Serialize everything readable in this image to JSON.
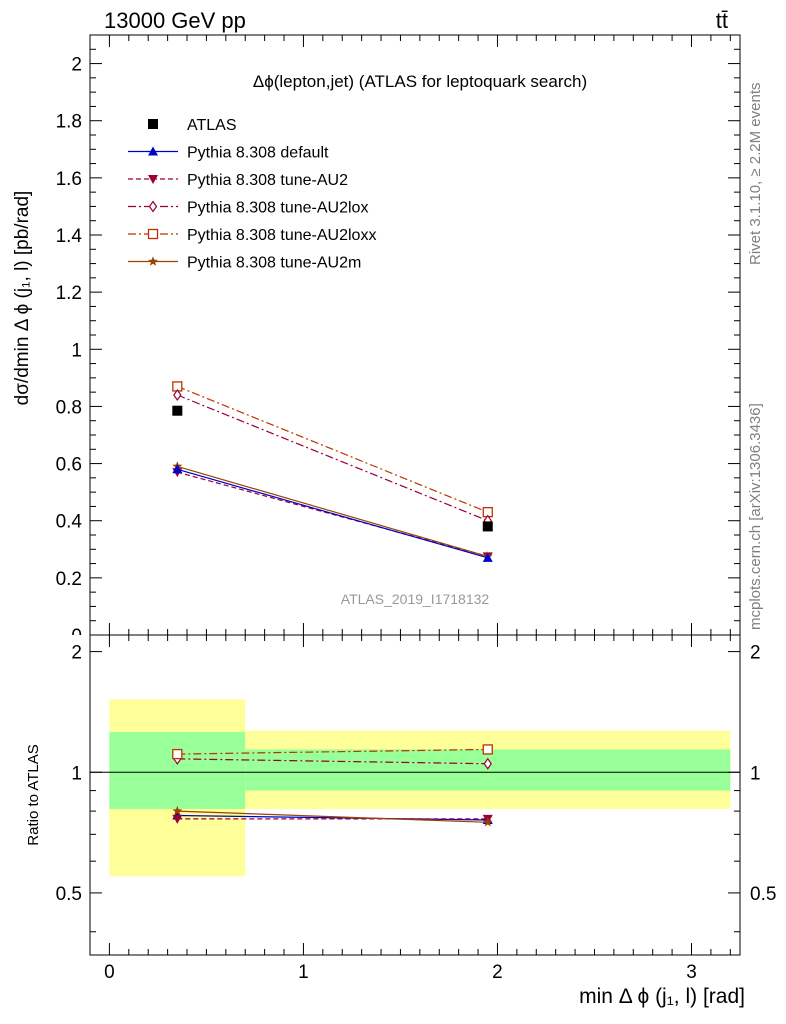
{
  "header": {
    "energy_label": "13000 GeV pp",
    "process_label": "tt̄"
  },
  "side_labels": {
    "rivet": "Rivet 3.1.10, ≥ 2.2M events",
    "mcplots": "mcplots.cern.ch [arXiv:1306.3436]"
  },
  "colors": {
    "data_band_inner": "#99ff99",
    "data_band_outer": "#ffff99"
  },
  "chart_data": [
    {
      "type": "scatter",
      "title": "Δϕ(lepton,jet) (ATLAS for leptoquark search)",
      "watermark": "ATLAS_2019_I1718132",
      "ylabel": "dσ/dmin Δ ϕ (j₁, l) [pb/rad]",
      "xlim": [
        -0.1,
        3.25
      ],
      "ylim": [
        0,
        2.1
      ],
      "yticks": [
        "0",
        "0.2",
        "0.4",
        "0.6",
        "0.8",
        "1",
        "1.2",
        "1.4",
        "1.6",
        "1.8",
        "2"
      ],
      "x": [
        0.35,
        1.95
      ],
      "series": [
        {
          "name": "ATLAS",
          "values": [
            0.785,
            0.38
          ],
          "color": "#000000",
          "marker": "square",
          "line": "none"
        },
        {
          "name": "Pythia 8.308 default",
          "values": [
            0.58,
            0.27
          ],
          "color": "#0000cc",
          "marker": "triangle-up",
          "line": "solid"
        },
        {
          "name": "Pythia 8.308 tune-AU2",
          "values": [
            0.57,
            0.275
          ],
          "color": "#990033",
          "marker": "triangle-down",
          "line": "dashed"
        },
        {
          "name": "Pythia 8.308 tune-AU2lox",
          "values": [
            0.84,
            0.4
          ],
          "color": "#990033",
          "marker": "diamond-open",
          "line": "dashdot"
        },
        {
          "name": "Pythia 8.308 tune-AU2loxx",
          "values": [
            0.87,
            0.43
          ],
          "color": "#bb3300",
          "marker": "square-open",
          "line": "dashdot"
        },
        {
          "name": "Pythia 8.308 tune-AU2m",
          "values": [
            0.59,
            0.275
          ],
          "color": "#994400",
          "marker": "star",
          "line": "solid"
        }
      ]
    },
    {
      "type": "scatter",
      "ylabel": "Ratio to ATLAS",
      "xlabel": "min Δ ϕ (j₁, l) [rad]",
      "xlim": [
        -0.1,
        3.25
      ],
      "ylim": [
        0.35,
        2.2
      ],
      "xticks": [
        "0",
        "1",
        "2",
        "3"
      ],
      "yticks": [
        "0.5",
        "1",
        "2"
      ],
      "bins": [
        {
          "x_low": 0.0,
          "x_high": 0.7,
          "inner": [
            0.81,
            1.26
          ],
          "outer": [
            0.55,
            1.52
          ]
        },
        {
          "x_low": 0.7,
          "x_high": 3.2,
          "inner": [
            0.9,
            1.14
          ],
          "outer": [
            0.81,
            1.27
          ]
        }
      ],
      "reference": 1.0,
      "x": [
        0.35,
        1.95
      ],
      "series": [
        {
          "name": "Pythia 8.308 default",
          "values": [
            0.78,
            0.76
          ]
        },
        {
          "name": "Pythia 8.308 tune-AU2",
          "values": [
            0.765,
            0.765
          ]
        },
        {
          "name": "Pythia 8.308 tune-AU2lox",
          "values": [
            1.08,
            1.05
          ]
        },
        {
          "name": "Pythia 8.308 tune-AU2loxx",
          "values": [
            1.11,
            1.14
          ]
        },
        {
          "name": "Pythia 8.308 tune-AU2m",
          "values": [
            0.8,
            0.75
          ]
        }
      ]
    }
  ]
}
